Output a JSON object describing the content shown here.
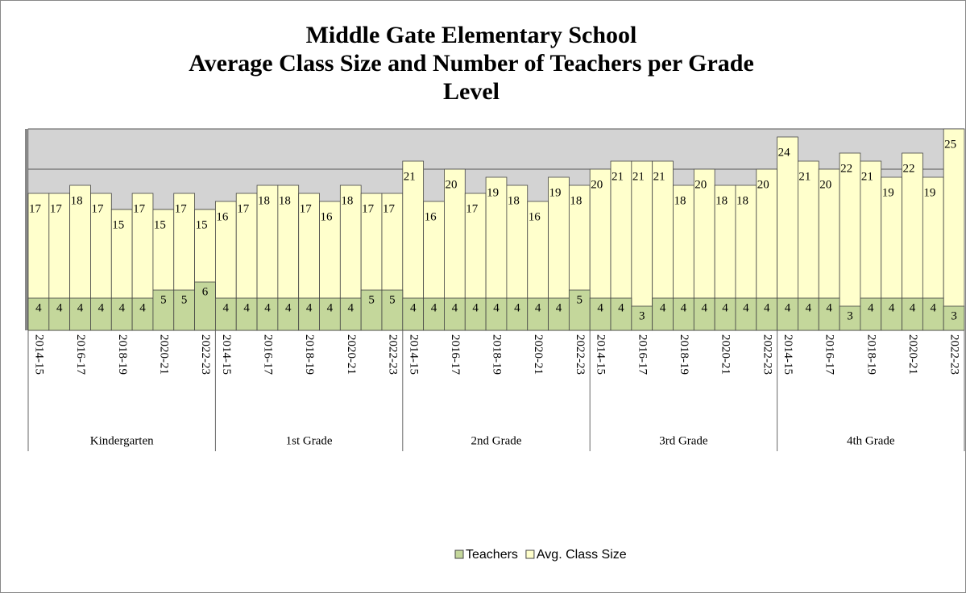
{
  "chart_data": {
    "type": "overlap_bar",
    "title": [
      "Middle Gate Elementary School",
      "Average Class Size and Number of Teachers per Grade",
      "Level"
    ],
    "groups": [
      "Kindergarten",
      "1st Grade",
      "2nd Grade",
      "3rd Grade",
      "4th Grade"
    ],
    "categories": [
      "2014-15",
      null,
      "2016-17",
      null,
      "2018-19",
      null,
      "2020-21",
      null,
      "2022-23",
      "2014-15",
      null,
      "2016-17",
      null,
      "2018-19",
      null,
      "2020-21",
      null,
      "2022-23",
      "2014-15",
      null,
      "2016-17",
      null,
      "2018-19",
      null,
      "2020-21",
      null,
      "2022-23",
      "2014-15",
      null,
      "2016-17",
      null,
      "2018-19",
      null,
      "2020-21",
      null,
      "2022-23",
      "2014-15",
      null,
      "2016-17",
      null,
      "2018-19",
      null,
      "2020-21",
      null,
      "2022-23"
    ],
    "series": [
      {
        "name": "Teachers",
        "color": "#c4d79b",
        "values": [
          4,
          4,
          4,
          4,
          4,
          4,
          5,
          5,
          6,
          4,
          4,
          4,
          4,
          4,
          4,
          4,
          5,
          5,
          4,
          4,
          4,
          4,
          4,
          4,
          4,
          4,
          5,
          4,
          4,
          3,
          4,
          4,
          4,
          4,
          4,
          4,
          4,
          4,
          4,
          3,
          4,
          4,
          4,
          4,
          3
        ]
      },
      {
        "name": "Avg. Class Size",
        "color": "#ffffcc",
        "values": [
          17,
          17,
          18,
          17,
          15,
          17,
          15,
          17,
          15,
          16,
          17,
          18,
          18,
          17,
          16,
          18,
          17,
          17,
          21,
          16,
          20,
          17,
          19,
          18,
          16,
          19,
          18,
          20,
          21,
          21,
          21,
          18,
          20,
          18,
          18,
          20,
          24,
          21,
          20,
          22,
          21,
          19,
          22,
          19,
          25
        ]
      }
    ],
    "ylim": [
      0,
      25
    ],
    "yticks": [
      0,
      5,
      10,
      15,
      20,
      25
    ],
    "grid": true
  }
}
